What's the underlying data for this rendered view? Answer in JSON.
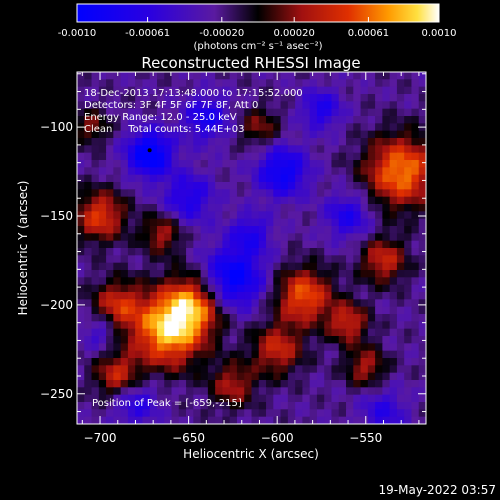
{
  "chart_data": {
    "type": "heatmap",
    "title": "Reconstructed RHESSI Image",
    "xlabel": "Heliocentric X (arcsec)",
    "ylabel": "Heliocentric Y (arcsec)",
    "xlim": [
      -713,
      -516
    ],
    "ylim": [
      -267,
      -69
    ],
    "x_ticks": [
      -700,
      -650,
      -600,
      -550
    ],
    "y_ticks": [
      -100,
      -150,
      -200,
      -250
    ],
    "colorbar": {
      "range": [
        -0.001,
        0.001
      ],
      "tick_values": [
        -0.001,
        -0.00061,
        -0.0002,
        0.0002,
        0.00061,
        0.001
      ],
      "tick_labels": [
        "-0.0010",
        "-0.00061",
        "-0.00020",
        "0.00020",
        "0.00061",
        "0.0010"
      ],
      "label": "(photons cm⁻² s⁻¹ asec⁻²)"
    },
    "annotations": [
      "18-Dec-2013 17:13:48.000 to 17:15:52.000",
      "Detectors: 3F 4F 5F 6F 7F 8F, Att 0",
      "Energy Range: 12.0 - 25.0 keV",
      "Clean     Total counts: 5.44E+03"
    ],
    "peak_label": "Position of Peak = [-659,-215]",
    "peak": [
      -659,
      -215
    ],
    "colors": {
      "min": "#0000ff",
      "mid": "#000000",
      "max": "#ffffff"
    }
  },
  "footer": {
    "timestamp": "19-May-2022 03:57"
  }
}
